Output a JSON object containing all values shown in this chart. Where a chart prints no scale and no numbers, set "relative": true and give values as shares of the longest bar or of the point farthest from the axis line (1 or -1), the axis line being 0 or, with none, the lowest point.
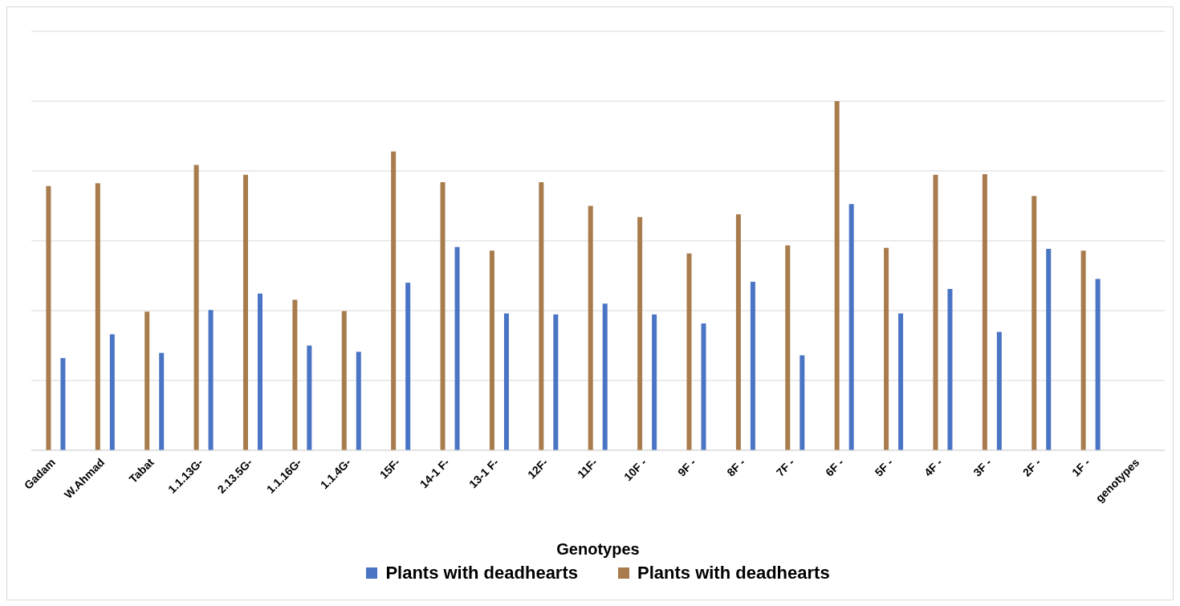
{
  "chart_data": {
    "type": "bar",
    "xlabel": "Genotypes",
    "relative": true,
    "grid": "y",
    "legend": "bottom",
    "categories": [
      "Gadam",
      "W.Ahmad",
      "Tabat",
      "1.1.13G-",
      "2.13.5G-",
      "1.1.16G-",
      "1.1.4G-",
      "15F-",
      "14-1 F-",
      "13-1 F-",
      "12F-",
      "11F-",
      "10F -",
      "9F -",
      "8F -",
      "7F -",
      "6F -",
      "5F -",
      "4F -",
      "3F -",
      "2F -",
      "1F -",
      "genotypes"
    ],
    "series": [
      {
        "name": "Plants with deadhearts",
        "color": "#4a74c4",
        "values": [
          0.264,
          0.332,
          0.279,
          0.402,
          0.449,
          0.3,
          0.282,
          0.48,
          0.582,
          0.392,
          0.389,
          0.42,
          0.389,
          0.363,
          0.483,
          0.272,
          0.705,
          0.392,
          0.462,
          0.339,
          0.577,
          0.491,
          null
        ]
      },
      {
        "name": "Plants with deadhearts",
        "color": "#a87c4c",
        "values": [
          0.757,
          0.765,
          0.397,
          0.817,
          0.789,
          0.431,
          0.399,
          0.856,
          0.768,
          0.572,
          0.768,
          0.7,
          0.668,
          0.564,
          0.676,
          0.587,
          1,
          0.58,
          0.789,
          0.791,
          0.728,
          0.572,
          null
        ]
      }
    ]
  }
}
